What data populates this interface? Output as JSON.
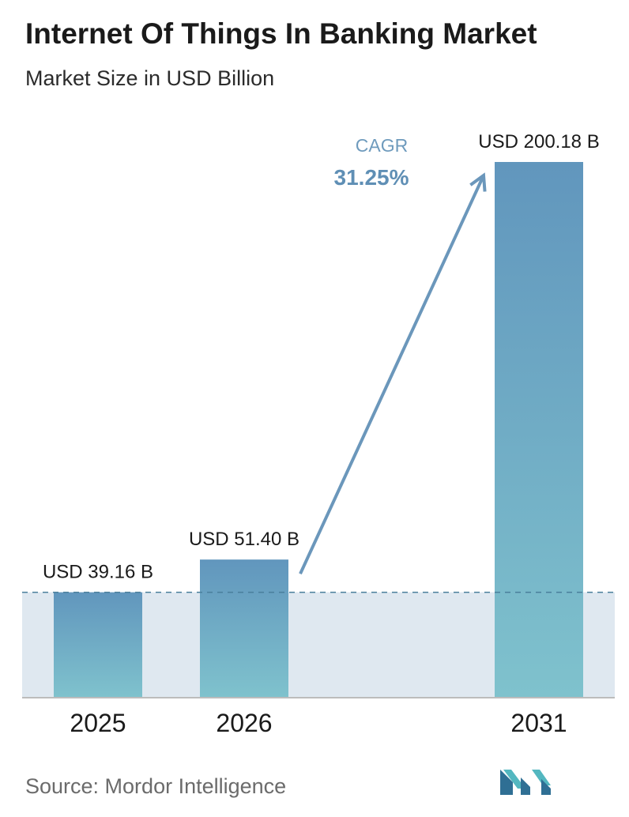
{
  "header": {
    "title": "Internet Of Things In Banking Market",
    "subtitle": "Market Size in USD Billion"
  },
  "footer": {
    "source": "Source:  Mordor Intelligence"
  },
  "cagr": {
    "label": "CAGR",
    "value": "31.25%"
  },
  "colors": {
    "bar_top": "#6196bd",
    "bar_bottom": "#7fc2cd",
    "band": "#dfe8f0",
    "arrow": "#6b97bb",
    "dashed_line": "#4a7f9c",
    "axis": "#bcbcbc"
  },
  "chart_data": {
    "type": "bar",
    "title": "Internet Of Things In Banking Market",
    "subtitle": "Market Size in USD Billion",
    "categories": [
      "2025",
      "2026",
      "2031"
    ],
    "values": [
      39.16,
      51.4,
      200.18
    ],
    "value_labels": [
      "USD 39.16 B",
      "USD 51.40 B",
      "USD 200.18 B"
    ],
    "ylim": [
      0,
      200.18
    ],
    "grid": false,
    "legend": "none",
    "reference_line": 39.16,
    "annotation": "CAGR 31.25%"
  }
}
